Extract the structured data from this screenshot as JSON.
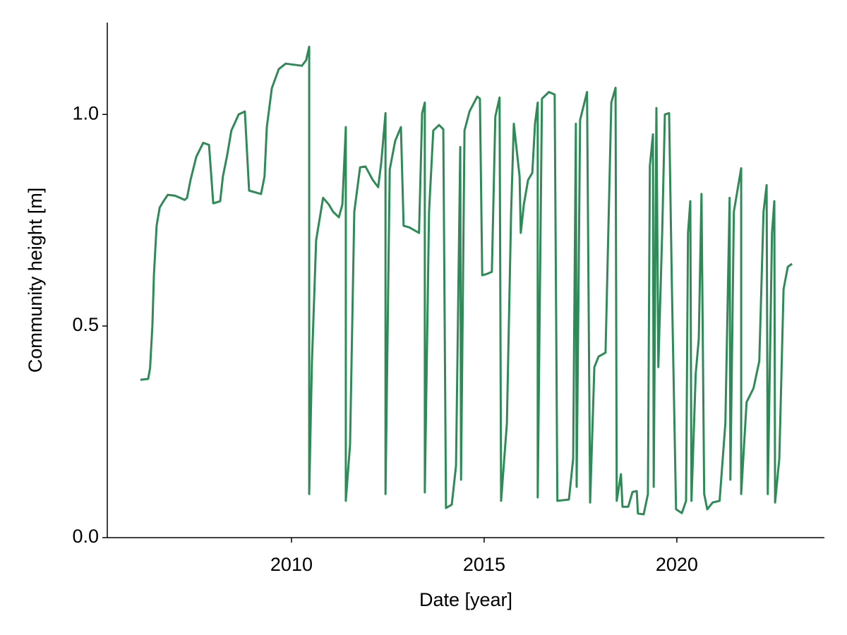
{
  "chart_data": {
    "type": "line",
    "xlabel": "Date [year]",
    "ylabel": "Community height [m]",
    "xlim": [
      2005.22,
      2023.83
    ],
    "xticks": [
      2010,
      2015,
      2020
    ],
    "ylim": [
      0,
      1.217
    ],
    "yticks": [
      {
        "value": 0,
        "label": "0.0"
      },
      0.5,
      {
        "value": 1,
        "label": "1.0"
      }
    ],
    "grid": false,
    "series": [
      {
        "color": "#2e8b57",
        "x": [
          2006.08,
          2006.28,
          2006.33,
          2006.39,
          2006.43,
          2006.5,
          2006.58,
          2006.68,
          2006.79,
          2006.98,
          2007.23,
          2007.29,
          2007.38,
          2007.53,
          2007.71,
          2007.86,
          2007.97,
          2008.15,
          2008.22,
          2008.33,
          2008.44,
          2008.63,
          2008.79,
          2008.9,
          2009.21,
          2009.3,
          2009.36,
          2009.49,
          2009.67,
          2009.85,
          2010.27,
          2010.38,
          2010.46,
          2010.46,
          2010.53,
          2010.64,
          2010.82,
          2010.97,
          2011.08,
          2011.23,
          2011.32,
          2011.41,
          2011.41,
          2011.52,
          2011.63,
          2011.78,
          2011.92,
          2012.11,
          2012.25,
          2012.33,
          2012.44,
          2012.44,
          2012.55,
          2012.69,
          2012.84,
          2012.91,
          2013.06,
          2013.31,
          2013.39,
          2013.46,
          2013.46,
          2013.57,
          2013.68,
          2013.83,
          2013.94,
          2014.01,
          2014.16,
          2014.27,
          2014.38,
          2014.4,
          2014.49,
          2014.62,
          2014.82,
          2014.89,
          2014.95,
          2015.07,
          2015.2,
          2015.29,
          2015.4,
          2015.44,
          2015.59,
          2015.7,
          2015.77,
          2015.92,
          2015.95,
          2016.03,
          2016.14,
          2016.25,
          2016.32,
          2016.39,
          2016.39,
          2016.5,
          2016.68,
          2016.83,
          2016.9,
          2017.2,
          2017.31,
          2017.38,
          2017.4,
          2017.49,
          2017.67,
          2017.75,
          2017.86,
          2017.97,
          2018.15,
          2018.3,
          2018.41,
          2018.44,
          2018.55,
          2018.59,
          2018.74,
          2018.85,
          2018.96,
          2018.99,
          2019.14,
          2019.25,
          2019.3,
          2019.38,
          2019.4,
          2019.47,
          2019.52,
          2019.62,
          2019.69,
          2019.8,
          2019.87,
          2019.98,
          2020.13,
          2020.24,
          2020.29,
          2020.35,
          2020.38,
          2020.49,
          2020.57,
          2020.64,
          2020.71,
          2020.79,
          2020.93,
          2021.11,
          2021.26,
          2021.37,
          2021.39,
          2021.48,
          2021.67,
          2021.67,
          2021.81,
          2021.99,
          2022.14,
          2022.25,
          2022.33,
          2022.36,
          2022.47,
          2022.53,
          2022.55,
          2022.66,
          2022.77,
          2022.88,
          2022.99
        ],
        "values": [
          0.373,
          0.375,
          0.4,
          0.5,
          0.62,
          0.737,
          0.78,
          0.795,
          0.81,
          0.808,
          0.798,
          0.803,
          0.845,
          0.9,
          0.933,
          0.928,
          0.79,
          0.795,
          0.853,
          0.903,
          0.962,
          1.0,
          1.007,
          0.82,
          0.812,
          0.853,
          0.97,
          1.062,
          1.107,
          1.12,
          1.115,
          1.128,
          1.16,
          0.103,
          0.412,
          0.703,
          0.803,
          0.787,
          0.77,
          0.757,
          0.787,
          0.97,
          0.087,
          0.22,
          0.77,
          0.875,
          0.877,
          0.845,
          0.828,
          0.887,
          1.003,
          0.103,
          0.87,
          0.937,
          0.97,
          0.737,
          0.733,
          0.72,
          1.003,
          1.028,
          0.107,
          0.77,
          0.962,
          0.975,
          0.965,
          0.07,
          0.078,
          0.17,
          0.923,
          0.137,
          0.962,
          1.007,
          1.042,
          1.037,
          0.62,
          0.623,
          0.628,
          0.995,
          1.04,
          0.087,
          0.27,
          0.77,
          0.978,
          0.853,
          0.72,
          0.787,
          0.845,
          0.862,
          0.978,
          1.028,
          0.095,
          1.037,
          1.053,
          1.047,
          0.087,
          0.09,
          0.187,
          0.978,
          0.12,
          0.987,
          1.053,
          0.083,
          0.403,
          0.428,
          0.437,
          1.028,
          1.063,
          0.087,
          0.15,
          0.073,
          0.073,
          0.108,
          0.11,
          0.057,
          0.055,
          0.103,
          0.878,
          0.953,
          0.12,
          1.015,
          0.403,
          0.72,
          1.0,
          1.003,
          0.603,
          0.067,
          0.058,
          0.087,
          0.72,
          0.795,
          0.087,
          0.387,
          0.47,
          0.812,
          0.103,
          0.067,
          0.083,
          0.087,
          0.27,
          0.803,
          0.137,
          0.77,
          0.873,
          0.103,
          0.32,
          0.353,
          0.417,
          0.77,
          0.833,
          0.103,
          0.72,
          0.795,
          0.083,
          0.187,
          0.587,
          0.64,
          0.647
        ]
      }
    ]
  }
}
